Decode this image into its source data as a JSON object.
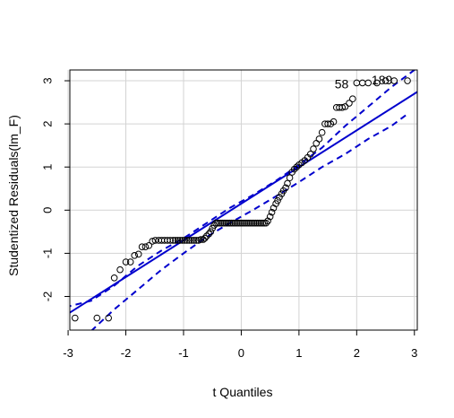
{
  "chart_data": {
    "type": "scatter",
    "title": "",
    "xlabel": "t Quantiles",
    "ylabel": "Studentized Residuals(lm_F)",
    "xlim": [
      -2.97,
      3.05
    ],
    "ylim": [
      -2.78,
      3.25
    ],
    "xticks": [
      -3,
      -2,
      -1,
      0,
      1,
      2,
      3
    ],
    "yticks": [
      -2,
      -1,
      0,
      1,
      2,
      3
    ],
    "xtick_labels": [
      "-3",
      "-2",
      "-1",
      "0",
      "1",
      "2",
      "3"
    ],
    "ytick_labels": [
      "-2",
      "-1",
      "0",
      "1",
      "2",
      "3"
    ],
    "grid": true,
    "colors": {
      "points": "#000000",
      "fit_line": "#0000cd",
      "envelope": "#0000cd",
      "grid": "#d3d3d3"
    },
    "points": [
      [
        -2.88,
        -2.5
      ],
      [
        -2.5,
        -2.5
      ],
      [
        -2.3,
        -2.5
      ],
      [
        -2.2,
        -1.57
      ],
      [
        -2.1,
        -1.38
      ],
      [
        -2.0,
        -1.2
      ],
      [
        -1.92,
        -1.2
      ],
      [
        -1.85,
        -1.05
      ],
      [
        -1.78,
        -1.02
      ],
      [
        -1.72,
        -0.85
      ],
      [
        -1.66,
        -0.85
      ],
      [
        -1.6,
        -0.82
      ],
      [
        -1.54,
        -0.72
      ],
      [
        -1.49,
        -0.7
      ],
      [
        -1.43,
        -0.7
      ],
      [
        -1.38,
        -0.7
      ],
      [
        -1.33,
        -0.7
      ],
      [
        -1.28,
        -0.7
      ],
      [
        -1.23,
        -0.7
      ],
      [
        -1.18,
        -0.7
      ],
      [
        -1.14,
        -0.7
      ],
      [
        -1.1,
        -0.7
      ],
      [
        -1.06,
        -0.7
      ],
      [
        -1.02,
        -0.7
      ],
      [
        -0.98,
        -0.7
      ],
      [
        -0.94,
        -0.7
      ],
      [
        -0.9,
        -0.7
      ],
      [
        -0.86,
        -0.7
      ],
      [
        -0.82,
        -0.7
      ],
      [
        -0.78,
        -0.7
      ],
      [
        -0.74,
        -0.7
      ],
      [
        -0.7,
        -0.68
      ],
      [
        -0.66,
        -0.68
      ],
      [
        -0.63,
        -0.65
      ],
      [
        -0.6,
        -0.6
      ],
      [
        -0.56,
        -0.55
      ],
      [
        -0.53,
        -0.5
      ],
      [
        -0.5,
        -0.42
      ],
      [
        -0.47,
        -0.35
      ],
      [
        -0.44,
        -0.3
      ],
      [
        -0.41,
        -0.3
      ],
      [
        -0.38,
        -0.3
      ],
      [
        -0.35,
        -0.3
      ],
      [
        -0.32,
        -0.3
      ],
      [
        -0.29,
        -0.3
      ],
      [
        -0.26,
        -0.3
      ],
      [
        -0.23,
        -0.3
      ],
      [
        -0.2,
        -0.3
      ],
      [
        -0.17,
        -0.3
      ],
      [
        -0.14,
        -0.3
      ],
      [
        -0.11,
        -0.3
      ],
      [
        -0.08,
        -0.3
      ],
      [
        -0.05,
        -0.3
      ],
      [
        -0.02,
        -0.3
      ],
      [
        0.01,
        -0.3
      ],
      [
        0.04,
        -0.3
      ],
      [
        0.07,
        -0.3
      ],
      [
        0.1,
        -0.3
      ],
      [
        0.13,
        -0.3
      ],
      [
        0.16,
        -0.3
      ],
      [
        0.19,
        -0.3
      ],
      [
        0.22,
        -0.3
      ],
      [
        0.25,
        -0.3
      ],
      [
        0.28,
        -0.3
      ],
      [
        0.31,
        -0.3
      ],
      [
        0.34,
        -0.3
      ],
      [
        0.37,
        -0.3
      ],
      [
        0.4,
        -0.3
      ],
      [
        0.43,
        -0.3
      ],
      [
        0.46,
        -0.25
      ],
      [
        0.5,
        -0.15
      ],
      [
        0.53,
        -0.05
      ],
      [
        0.56,
        0.05
      ],
      [
        0.6,
        0.15
      ],
      [
        0.63,
        0.22
      ],
      [
        0.66,
        0.3
      ],
      [
        0.7,
        0.38
      ],
      [
        0.73,
        0.45
      ],
      [
        0.77,
        0.52
      ],
      [
        0.8,
        0.62
      ],
      [
        0.84,
        0.75
      ],
      [
        0.88,
        0.88
      ],
      [
        0.92,
        0.95
      ],
      [
        0.96,
        1.0
      ],
      [
        1.0,
        1.05
      ],
      [
        1.05,
        1.1
      ],
      [
        1.1,
        1.15
      ],
      [
        1.15,
        1.22
      ],
      [
        1.2,
        1.3
      ],
      [
        1.25,
        1.42
      ],
      [
        1.3,
        1.55
      ],
      [
        1.35,
        1.65
      ],
      [
        1.4,
        1.8
      ],
      [
        1.45,
        2.0
      ],
      [
        1.5,
        2.0
      ],
      [
        1.55,
        2.0
      ],
      [
        1.6,
        2.05
      ],
      [
        1.65,
        2.38
      ],
      [
        1.7,
        2.38
      ],
      [
        1.75,
        2.38
      ],
      [
        1.8,
        2.4
      ],
      [
        1.87,
        2.48
      ],
      [
        1.93,
        2.58
      ],
      [
        2.0,
        2.95
      ],
      [
        2.1,
        2.95
      ],
      [
        2.2,
        2.95
      ],
      [
        2.35,
        2.95
      ],
      [
        2.5,
        3.0
      ],
      [
        2.65,
        3.0
      ],
      [
        2.88,
        3.0
      ]
    ],
    "fit_line": {
      "intercept": 0.15,
      "slope": 0.85
    },
    "envelope": {
      "upper": [
        [
          -3.05,
          -2.25
        ],
        [
          -2.6,
          -2.1
        ],
        [
          -2.2,
          -1.75
        ],
        [
          -1.8,
          -1.3
        ],
        [
          -1.4,
          -0.95
        ],
        [
          -1.0,
          -0.65
        ],
        [
          -0.6,
          -0.3
        ],
        [
          -0.2,
          0.05
        ],
        [
          0.2,
          0.35
        ],
        [
          0.6,
          0.68
        ],
        [
          1.0,
          1.05
        ],
        [
          1.4,
          1.45
        ],
        [
          1.8,
          1.95
        ],
        [
          2.2,
          2.4
        ],
        [
          2.6,
          2.85
        ],
        [
          3.05,
          3.3
        ]
      ],
      "lower": [
        [
          -2.6,
          -2.8
        ],
        [
          -2.2,
          -2.3
        ],
        [
          -1.8,
          -1.85
        ],
        [
          -1.4,
          -1.4
        ],
        [
          -1.0,
          -1.0
        ],
        [
          -0.6,
          -0.62
        ],
        [
          -0.2,
          -0.3
        ],
        [
          0.2,
          0.0
        ],
        [
          0.6,
          0.32
        ],
        [
          1.0,
          0.65
        ],
        [
          1.4,
          1.0
        ],
        [
          1.8,
          1.3
        ],
        [
          2.2,
          1.65
        ],
        [
          2.6,
          1.95
        ],
        [
          2.9,
          2.25
        ]
      ]
    },
    "annotations": [
      {
        "text": "58",
        "x": 1.86,
        "y": 2.93
      },
      {
        "text": "189",
        "x": 2.62,
        "y": 3.02
      }
    ]
  }
}
